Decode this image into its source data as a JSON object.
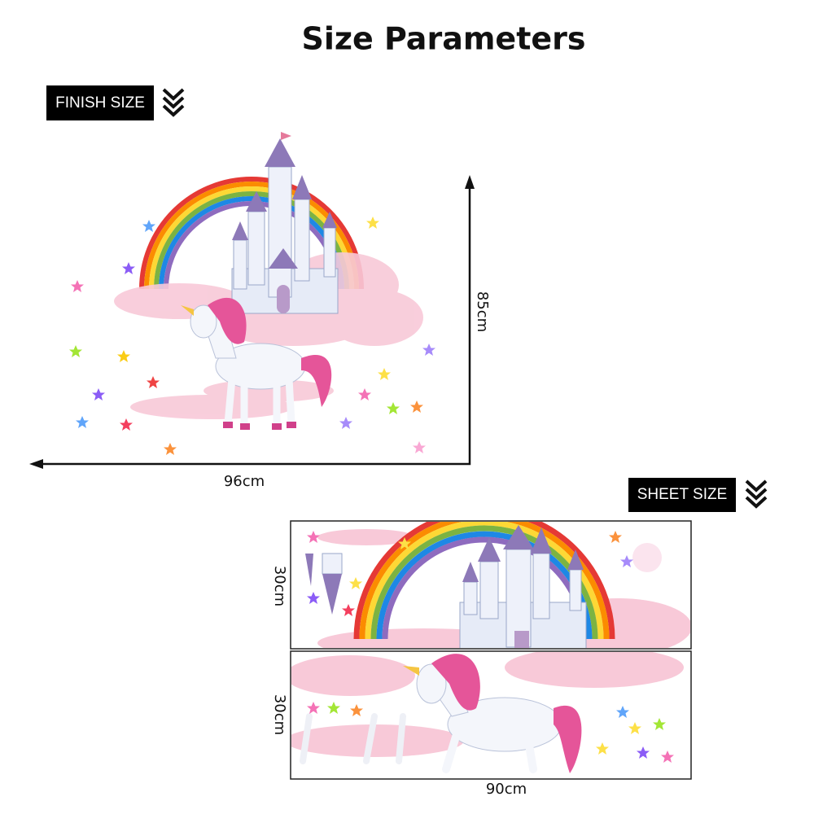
{
  "header": {
    "title": "Size Parameters"
  },
  "finish_size": {
    "label": "FINISH SIZE",
    "height": "85cm",
    "width": "96cm"
  },
  "sheet_size": {
    "label": "SHEET SIZE",
    "sheet_heights": [
      "30cm",
      "30cm"
    ],
    "width": "90cm"
  }
}
